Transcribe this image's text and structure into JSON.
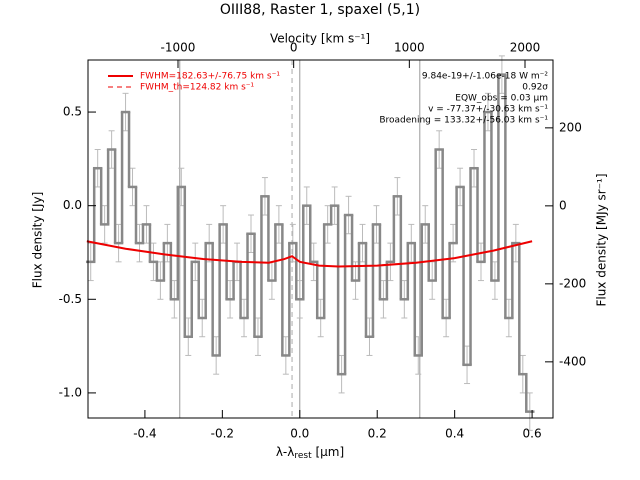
{
  "chart_data": {
    "type": "step",
    "title": "OIII88, Raster 1, spaxel (5,1)",
    "x_label": {
      "main": "λ-λ",
      "sub": "rest",
      "unit": " [μm]"
    },
    "y_label": "Flux density [Jy]",
    "x2_label": "Velocity [km s⁻¹]",
    "y2_label": "Flux density [MJy sr⁻¹]",
    "xlim": [
      -0.547,
      0.654
    ],
    "ylim": [
      -1.134,
      0.778
    ],
    "x2lim": [
      -1778,
      2242
    ],
    "y2lim": [
      -544,
      374
    ],
    "xticks": [
      -0.4,
      -0.2,
      {
        "value": 0,
        "label": "0.0"
      },
      0.2,
      0.4,
      0.6
    ],
    "yticks": [
      0.5,
      {
        "value": 0,
        "label": "0.0"
      },
      -0.5,
      {
        "value": -1,
        "label": "-1.0"
      }
    ],
    "x2ticks": [
      -1000,
      0,
      1000,
      2000
    ],
    "y2ticks": [
      200,
      0,
      -200,
      -400
    ],
    "vlines": [
      -0.31,
      0,
      0.31
    ],
    "dashed_vline": -0.02,
    "series": [
      {
        "name": "spectrum",
        "color": "#888888",
        "error_color": "#bbbbbb",
        "error": 0.1,
        "x": [
          -0.54,
          -0.522,
          -0.504,
          -0.486,
          -0.468,
          -0.45,
          -0.432,
          -0.414,
          -0.396,
          -0.378,
          -0.36,
          -0.342,
          -0.324,
          -0.306,
          -0.288,
          -0.27,
          -0.252,
          -0.234,
          -0.216,
          -0.198,
          -0.18,
          -0.162,
          -0.144,
          -0.126,
          -0.108,
          -0.09,
          -0.072,
          -0.054,
          -0.036,
          -0.018,
          0,
          0.018,
          0.036,
          0.054,
          0.072,
          0.09,
          0.108,
          0.126,
          0.144,
          0.162,
          0.18,
          0.198,
          0.216,
          0.234,
          0.252,
          0.27,
          0.288,
          0.306,
          0.324,
          0.342,
          0.36,
          0.378,
          0.396,
          0.414,
          0.432,
          0.45,
          0.468,
          0.486,
          0.504,
          0.522,
          0.54,
          0.558,
          0.576,
          0.594
        ],
        "values": [
          -0.3,
          0.2,
          -0.1,
          0.3,
          -0.2,
          0.5,
          0.1,
          -0.2,
          -0.1,
          -0.3,
          -0.4,
          -0.2,
          -0.5,
          0.1,
          -0.7,
          -0.3,
          -0.6,
          -0.2,
          -0.8,
          -0.1,
          -0.5,
          -0.3,
          -0.6,
          -0.15,
          -0.7,
          0.05,
          -0.4,
          -0.1,
          -0.8,
          -0.2,
          -0.5,
          0,
          -0.3,
          -0.6,
          -0.1,
          0,
          -0.9,
          -0.05,
          -0.4,
          -0.2,
          -0.7,
          -0.1,
          -0.5,
          -0.3,
          0.05,
          -0.5,
          -0.2,
          -0.8,
          -0.1,
          -0.4,
          0.3,
          -0.6,
          -0.2,
          0.1,
          -0.85,
          0.2,
          -0.3,
          0.5,
          -0.4,
          0.7,
          -0.6,
          -0.2,
          -0.9,
          -1.1
        ]
      },
      {
        "name": "FWHM=182.63+/-76.75 km s⁻¹",
        "color": "#ee0000",
        "x": [
          -0.55,
          -0.45,
          -0.35,
          -0.25,
          -0.15,
          -0.08,
          -0.04,
          -0.02,
          0,
          0.05,
          0.1,
          0.2,
          0.3,
          0.4,
          0.5,
          0.6
        ],
        "values": [
          -0.19,
          -0.23,
          -0.26,
          -0.285,
          -0.3,
          -0.305,
          -0.285,
          -0.27,
          -0.3,
          -0.32,
          -0.325,
          -0.32,
          -0.305,
          -0.28,
          -0.24,
          -0.19
        ]
      }
    ],
    "legend_dashed": "FWHM_th=124.82 km s⁻¹",
    "annotations": [
      "9.84e-19+/-1.06e-18 W m⁻²",
      "0.92σ",
      "EQW_obs = 0.03 μm",
      "v = -77.37+/-30.63 km s⁻¹",
      "Broadening = 133.32+/-56.03 km s⁻¹"
    ]
  }
}
